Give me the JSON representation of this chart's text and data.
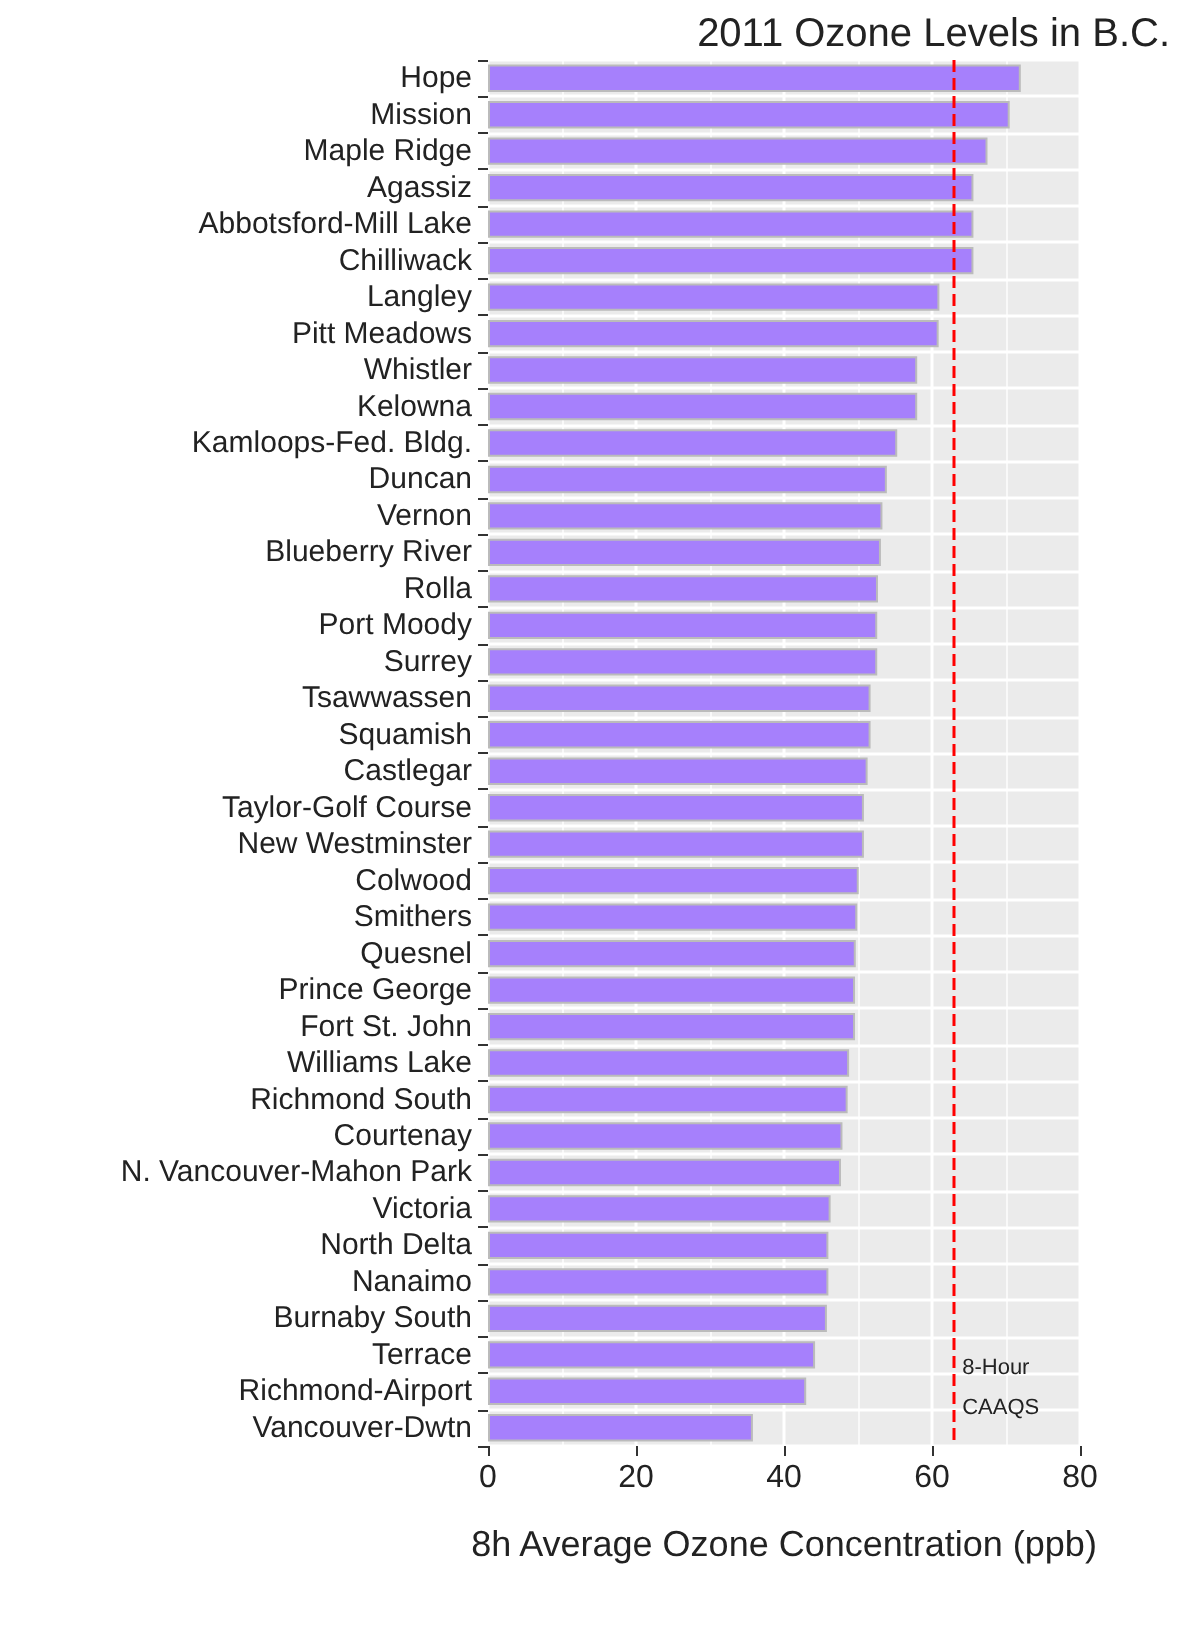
{
  "chart_data": {
    "type": "bar",
    "orientation": "horizontal",
    "title": "2011 Ozone Levels in B.C.",
    "xlabel": "8h Average Ozone Concentration (ppb)",
    "categories": [
      "Hope",
      "Mission",
      "Maple Ridge",
      "Agassiz",
      "Abbotsford-Mill Lake",
      "Chilliwack",
      "Langley",
      "Pitt Meadows",
      "Whistler",
      "Kelowna",
      "Kamloops-Fed. Bldg.",
      "Duncan",
      "Vernon",
      "Blueberry River",
      "Rolla",
      "Port Moody",
      "Surrey",
      "Tsawwassen",
      "Squamish",
      "Castlegar",
      "Taylor-Golf Course",
      "New Westminster",
      "Colwood",
      "Smithers",
      "Quesnel",
      "Prince George",
      "Fort St. John",
      "Williams Lake",
      "Richmond South",
      "Courtenay",
      "N. Vancouver-Mahon Park",
      "Victoria",
      "North Delta",
      "Nanaimo",
      "Burnaby South",
      "Terrace",
      "Richmond-Airport",
      "Vancouver-Dwtn"
    ],
    "values": [
      72,
      70.5,
      67.5,
      65.6,
      65.6,
      65.6,
      61,
      60.9,
      58,
      58,
      55.3,
      53.9,
      53.3,
      53.1,
      52.7,
      52.6,
      52.6,
      51.7,
      51.7,
      51.3,
      50.8,
      50.8,
      50.1,
      49.9,
      49.7,
      49.6,
      49.6,
      48.8,
      48.6,
      47.9,
      47.7,
      46.3,
      46,
      46,
      45.8,
      44.2,
      43,
      35.8
    ],
    "color": "#a680fc",
    "xlim": [
      0,
      80
    ],
    "xticks": [
      0,
      20,
      40,
      60,
      80
    ],
    "grid": true,
    "ref_lines": [
      {
        "axis": "x",
        "value": 63,
        "label": "8-Hour CAAQS",
        "color": "#ff0000",
        "line_style": "dashed"
      }
    ]
  }
}
